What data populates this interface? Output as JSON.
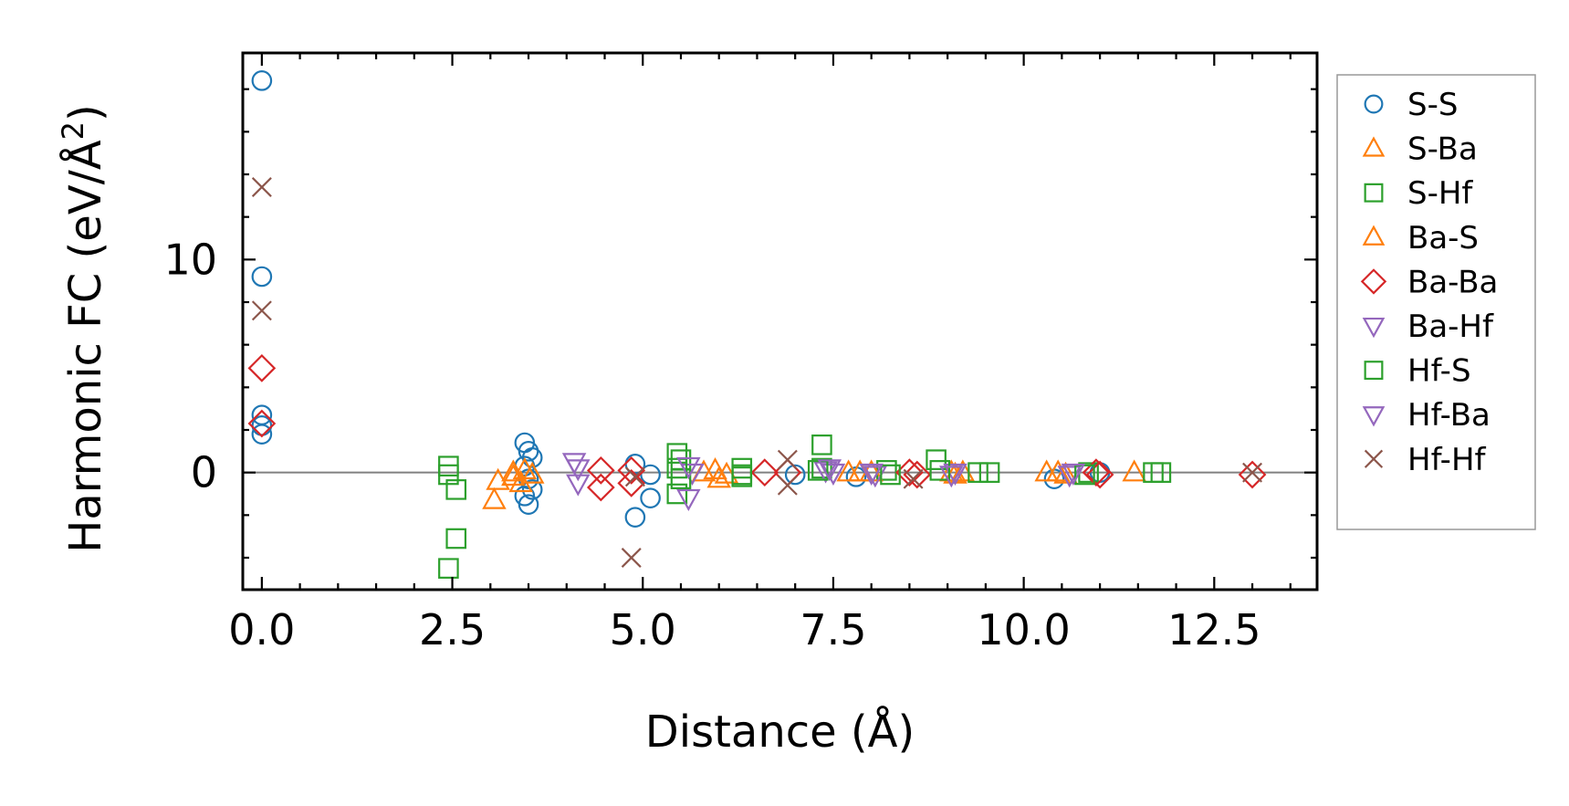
{
  "chart_data": {
    "type": "scatter",
    "xlabel": "Distance (Å)",
    "ylabel_main": "Harmonic FC (eV/Å",
    "ylabel_sup": "2",
    "ylabel_close": ")",
    "xlim": [
      -0.25,
      13.85
    ],
    "ylim": [
      -5.5,
      19.7
    ],
    "xticks": [
      0.0,
      2.5,
      5.0,
      7.5,
      10.0,
      12.5
    ],
    "xtick_labels": [
      "0.0",
      "2.5",
      "5.0",
      "7.5",
      "10.0",
      "12.5"
    ],
    "yticks": [
      0,
      10
    ],
    "ytick_labels": [
      "0",
      "10"
    ],
    "reference_line_y": 0,
    "legend_position": "outside-right",
    "grid": false,
    "series": [
      {
        "name": "S-S",
        "marker": "circle",
        "color": "#1f77b4",
        "points": [
          [
            0,
            18.4
          ],
          [
            0,
            9.2
          ],
          [
            0,
            2.7
          ],
          [
            0,
            2.2
          ],
          [
            0,
            1.8
          ],
          [
            3.45,
            1.4
          ],
          [
            3.5,
            1.0
          ],
          [
            3.55,
            0.7
          ],
          [
            3.45,
            0.3
          ],
          [
            3.5,
            -0.3
          ],
          [
            3.55,
            -0.8
          ],
          [
            3.45,
            -1.1
          ],
          [
            3.5,
            -1.5
          ],
          [
            4.9,
            -2.1
          ],
          [
            5.1,
            -1.2
          ],
          [
            4.9,
            0.4
          ],
          [
            5.1,
            -0.1
          ],
          [
            7.0,
            -0.1
          ],
          [
            7.8,
            -0.2
          ],
          [
            10.4,
            -0.3
          ],
          [
            11.0,
            0.0
          ]
        ]
      },
      {
        "name": "S-Ba",
        "marker": "triangle-up",
        "color": "#ff7f0e",
        "points": [
          [
            3.05,
            -1.3
          ],
          [
            3.1,
            -0.4
          ],
          [
            3.3,
            -0.2
          ],
          [
            3.4,
            -0.5
          ],
          [
            5.8,
            0.0
          ],
          [
            5.95,
            0.1
          ],
          [
            6.1,
            -0.1
          ],
          [
            7.7,
            0.0
          ],
          [
            7.85,
            0.0
          ],
          [
            9.05,
            0.0
          ],
          [
            9.2,
            0.0
          ],
          [
            10.3,
            0.0
          ],
          [
            10.45,
            0.0
          ],
          [
            11.45,
            0.0
          ]
        ]
      },
      {
        "name": "S-Hf",
        "marker": "square",
        "color": "#2ca02c",
        "points": [
          [
            2.45,
            0.3
          ],
          [
            2.45,
            -0.1
          ],
          [
            2.55,
            -0.8
          ],
          [
            2.55,
            -3.1
          ],
          [
            2.45,
            -4.5
          ],
          [
            5.45,
            0.9
          ],
          [
            5.5,
            0.6
          ],
          [
            5.45,
            -1.0
          ],
          [
            6.3,
            0.2
          ],
          [
            6.3,
            -0.2
          ],
          [
            7.35,
            1.3
          ],
          [
            7.35,
            0.2
          ],
          [
            8.2,
            0.1
          ],
          [
            8.85,
            0.6
          ],
          [
            9.55,
            0.0
          ],
          [
            10.85,
            0.0
          ],
          [
            11.7,
            0.0
          ],
          [
            11.8,
            0.0
          ]
        ]
      },
      {
        "name": "Ba-S",
        "marker": "triangle-up",
        "color": "#ff7f0e",
        "points": [
          [
            3.45,
            0.1
          ],
          [
            3.55,
            -0.1
          ],
          [
            3.3,
            0.0
          ],
          [
            6.0,
            -0.3
          ],
          [
            8.0,
            0.0
          ],
          [
            9.1,
            -0.1
          ],
          [
            10.55,
            -0.1
          ]
        ]
      },
      {
        "name": "Ba-Ba",
        "marker": "diamond",
        "color": "#d62728",
        "points": [
          [
            0,
            4.9
          ],
          [
            0,
            2.3
          ],
          [
            4.45,
            0.1
          ],
          [
            4.45,
            -0.7
          ],
          [
            4.85,
            0.1
          ],
          [
            4.85,
            -0.5
          ],
          [
            6.6,
            0.0
          ],
          [
            6.9,
            0.0
          ],
          [
            8.5,
            0.0
          ],
          [
            8.6,
            -0.1
          ],
          [
            10.95,
            0.0
          ],
          [
            11.0,
            -0.1
          ],
          [
            13.0,
            -0.1
          ]
        ]
      },
      {
        "name": "Ba-Hf",
        "marker": "triangle-down",
        "color": "#9467bd",
        "points": [
          [
            4.1,
            0.5
          ],
          [
            4.15,
            -0.5
          ],
          [
            5.6,
            -1.2
          ],
          [
            5.65,
            0.0
          ],
          [
            7.4,
            0.1
          ],
          [
            7.5,
            0.0
          ],
          [
            8.05,
            -0.1
          ],
          [
            9.1,
            0.0
          ],
          [
            10.6,
            -0.1
          ]
        ]
      },
      {
        "name": "Hf-S",
        "marker": "square",
        "color": "#2ca02c",
        "points": [
          [
            5.45,
            0.2
          ],
          [
            5.5,
            -0.3
          ],
          [
            6.3,
            -0.1
          ],
          [
            7.3,
            0.1
          ],
          [
            8.25,
            -0.1
          ],
          [
            8.9,
            0.1
          ],
          [
            9.4,
            0.0
          ],
          [
            10.8,
            -0.1
          ]
        ]
      },
      {
        "name": "Hf-Ba",
        "marker": "triangle-down",
        "color": "#9467bd",
        "points": [
          [
            4.15,
            0.2
          ],
          [
            5.6,
            0.3
          ],
          [
            7.45,
            0.2
          ],
          [
            8.0,
            0.0
          ],
          [
            9.05,
            -0.1
          ],
          [
            10.65,
            0.0
          ]
        ]
      },
      {
        "name": "Hf-Hf",
        "marker": "x",
        "color": "#8c564b",
        "points": [
          [
            0,
            13.4
          ],
          [
            0,
            7.6
          ],
          [
            4.85,
            -4.0
          ],
          [
            4.9,
            -0.2
          ],
          [
            6.9,
            0.6
          ],
          [
            6.9,
            -0.6
          ],
          [
            8.55,
            -0.3
          ],
          [
            13.0,
            0.0
          ]
        ]
      }
    ]
  }
}
